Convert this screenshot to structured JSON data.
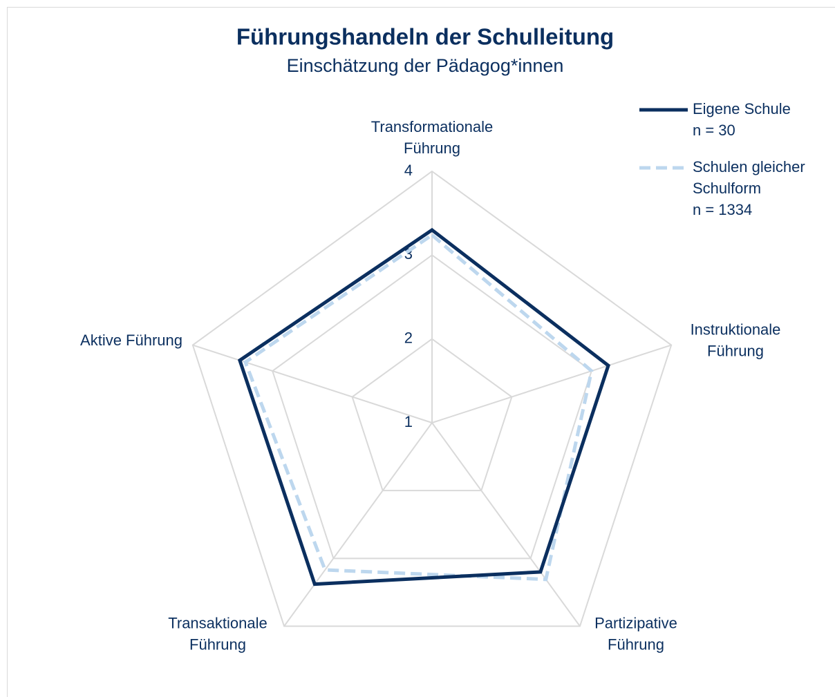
{
  "chart_data": {
    "type": "radar",
    "title": "Führungshandeln der Schulleitung",
    "subtitle": "Einschätzung der Pädagog*innen",
    "categories": [
      "Transformationale\nFührung",
      "Instruktionale\nFührung",
      "Partizipative\nFührung",
      "Transaktionale\nFührung",
      "Aktive Führung"
    ],
    "series": [
      {
        "name": "Eigene Schule\nn = 30",
        "color": "#0b2f5f",
        "dash": false,
        "values": [
          3.3,
          3.21,
          3.2,
          3.38,
          3.41
        ]
      },
      {
        "name": "Schulen gleicher\nSchulform\nn = 1334",
        "color": "#bdd7ee",
        "dash": true,
        "values": [
          3.24,
          3.0,
          3.31,
          3.17,
          3.34
        ]
      }
    ],
    "ylim": [
      1,
      4
    ],
    "yticks": [
      1,
      2,
      3,
      4
    ],
    "grid": true,
    "legend": "top-right"
  }
}
